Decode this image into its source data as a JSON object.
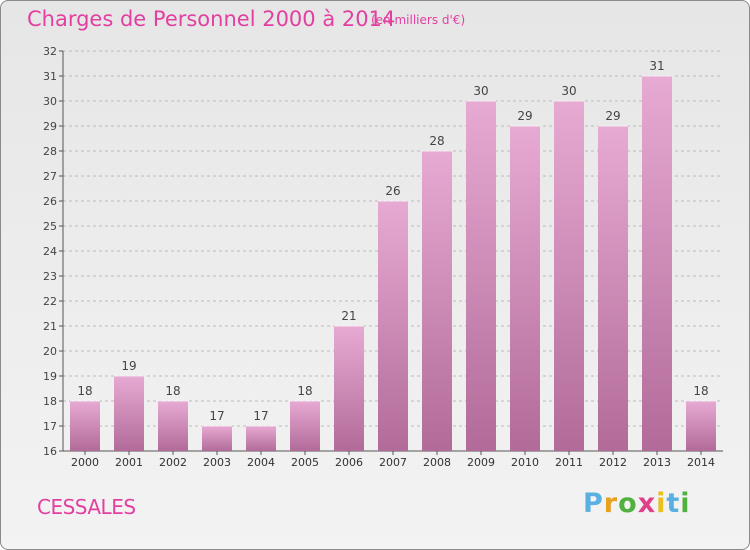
{
  "title": "Charges de Personnel 2000 à 2014",
  "subtitle": "(en milliers d'€)",
  "location": "CESSALES",
  "brand": {
    "letters": [
      "P",
      "r",
      "o",
      "x",
      "i",
      "t",
      "i"
    ],
    "colors": [
      "#5ab0e0",
      "#e8a020",
      "#50b040",
      "#e23f8a",
      "#e8c020",
      "#5ab0e0",
      "#50b040"
    ]
  },
  "colors": {
    "accent": "#e23fa0",
    "bar_top": "#e7aad3",
    "bar_bottom": "#b26b99",
    "grid": "#bbbbbb"
  },
  "chart_data": {
    "type": "bar",
    "title": "Charges de Personnel 2000 à 2014",
    "subtitle": "(en milliers d'€)",
    "categories": [
      "2000",
      "2001",
      "2002",
      "2003",
      "2004",
      "2005",
      "2006",
      "2007",
      "2008",
      "2009",
      "2010",
      "2011",
      "2012",
      "2013",
      "2014"
    ],
    "values": [
      18,
      19,
      18,
      17,
      17,
      18,
      21,
      26,
      28,
      30,
      29,
      30,
      29,
      31,
      18
    ],
    "ylim": [
      16,
      32
    ],
    "yticks": [
      16,
      17,
      18,
      19,
      20,
      21,
      22,
      23,
      24,
      25,
      26,
      27,
      28,
      29,
      30,
      31,
      32
    ],
    "grid": true,
    "data_labels": true
  }
}
